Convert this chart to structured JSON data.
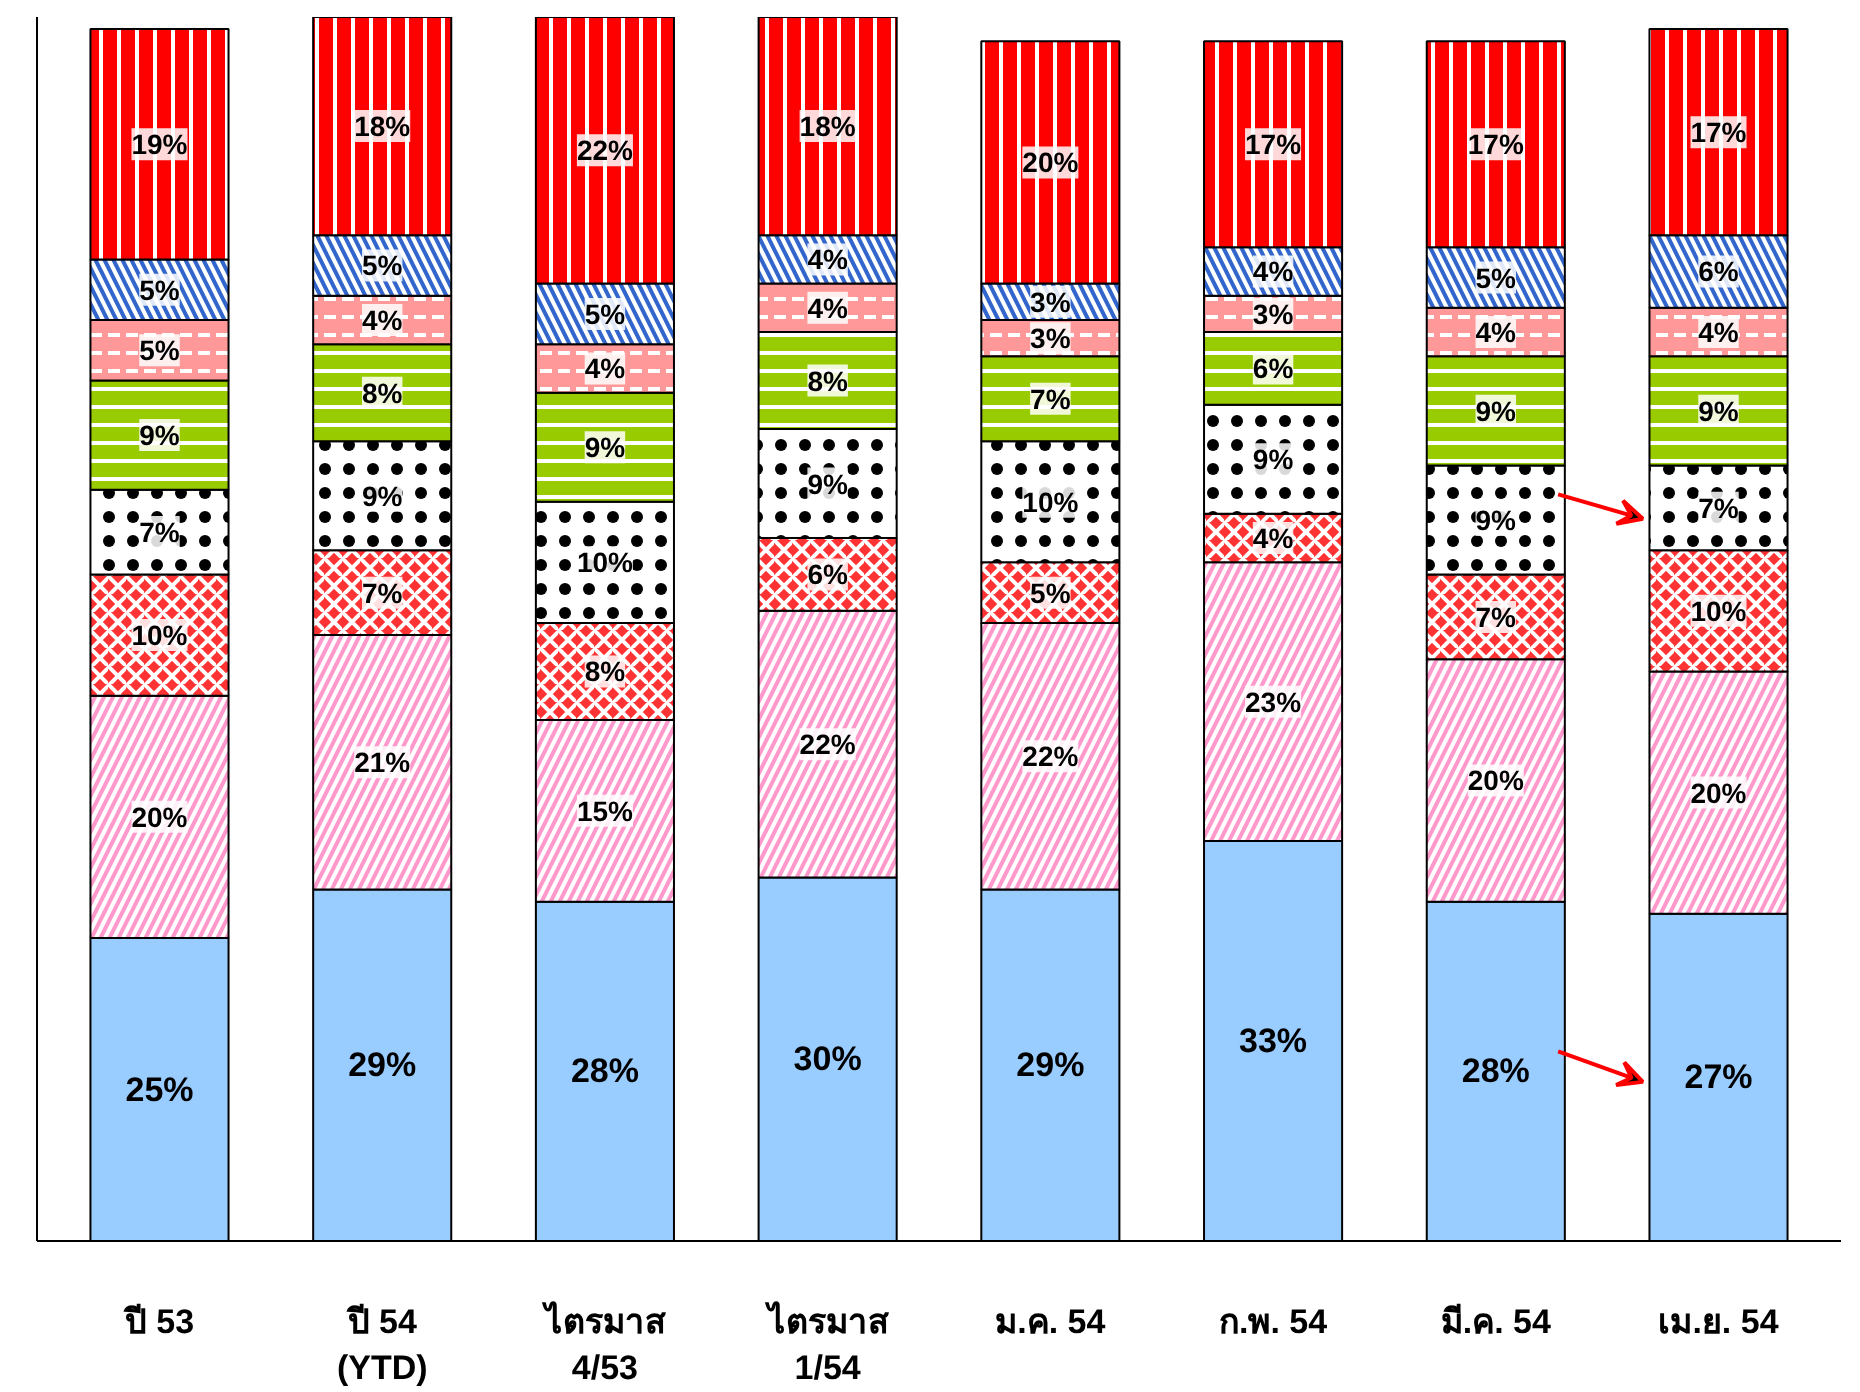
{
  "chart_data": {
    "type": "bar",
    "stacked": true,
    "tick_labels": "x",
    "grid": false,
    "categories": [
      "ปี 53",
      "ปี 54\n(YTD)",
      "ไตรมาส\n4/53",
      "ไตรมาส\n1/54",
      "ม.ค. 54",
      "ก.พ. 54",
      "มี.ค. 54",
      "เม.ย. 54"
    ],
    "series": [
      {
        "color": "#99ccff",
        "values": [
          25,
          29,
          28,
          30,
          29,
          33,
          28,
          27
        ],
        "value_labels": [
          "25%",
          "29%",
          "28%",
          "30%",
          "29%",
          "33%",
          "28%",
          "27%"
        ]
      },
      {
        "color": "#ff99cc",
        "values": [
          20,
          21,
          15,
          22,
          22,
          23,
          20,
          20
        ],
        "value_labels": [
          "20%",
          "21%",
          "15%",
          "22%",
          "22%",
          "23%",
          "20%",
          "20%"
        ]
      },
      {
        "color": "#ff3333",
        "values": [
          10,
          7,
          8,
          6,
          5,
          4,
          7,
          10
        ],
        "value_labels": [
          "10%",
          "7%",
          "8%",
          "6%",
          "5%",
          "4%",
          "7%",
          "10%"
        ]
      },
      {
        "color": "#ffffff",
        "values": [
          7,
          9,
          10,
          9,
          10,
          9,
          9,
          7
        ],
        "value_labels": [
          "7%",
          "9%",
          "10%",
          "9%",
          "10%",
          "9%",
          "9%",
          "7%"
        ]
      },
      {
        "color": "#99cc00",
        "values": [
          9,
          8,
          9,
          8,
          7,
          6,
          9,
          9
        ],
        "value_labels": [
          "9%",
          "8%",
          "9%",
          "8%",
          "7%",
          "6%",
          "9%",
          "9%"
        ]
      },
      {
        "color": "#ff9999",
        "values": [
          5,
          4,
          4,
          4,
          3,
          3,
          4,
          4
        ],
        "value_labels": [
          "5%",
          "4%",
          "4%",
          "4%",
          "3%",
          "3%",
          "4%",
          "4%"
        ]
      },
      {
        "color": "#3366cc",
        "values": [
          5,
          5,
          5,
          4,
          3,
          4,
          5,
          6
        ],
        "value_labels": [
          "5%",
          "5%",
          "5%",
          "4%",
          "3%",
          "4%",
          "5%",
          "6%"
        ]
      },
      {
        "color": "#ff0000",
        "values": [
          19,
          18,
          22,
          18,
          20,
          17,
          17,
          17
        ],
        "value_labels": [
          "19%",
          "18%",
          "22%",
          "18%",
          "20%",
          "17%",
          "17%",
          "17%"
        ]
      }
    ]
  }
}
